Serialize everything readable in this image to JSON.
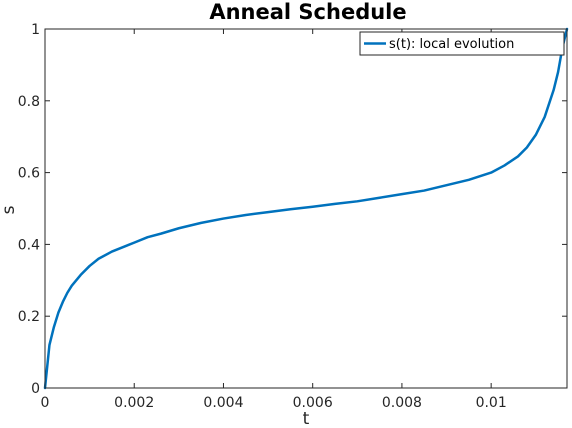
{
  "chart_data": {
    "type": "line",
    "title": "Anneal Schedule",
    "xlabel": "t",
    "ylabel": "s",
    "xlim": [
      0,
      0.0117
    ],
    "ylim": [
      0,
      1
    ],
    "xticks": [
      0,
      0.002,
      0.004,
      0.006,
      0.008,
      0.01
    ],
    "xtick_labels": [
      "0",
      "0.002",
      "0.004",
      "0.006",
      "0.008",
      "0.01"
    ],
    "yticks": [
      0,
      0.2,
      0.4,
      0.6,
      0.8,
      1
    ],
    "ytick_labels": [
      "0",
      "0.2",
      "0.4",
      "0.6",
      "0.8",
      "1"
    ],
    "grid": false,
    "legend_position": "top-right",
    "series": [
      {
        "name": "s(t): local evolution",
        "color": "#0072BD",
        "x": [
          0,
          0.0001,
          0.0002,
          0.0003,
          0.0004,
          0.0005,
          0.0006,
          0.0008,
          0.001,
          0.0012,
          0.0015,
          0.002,
          0.0023,
          0.0026,
          0.003,
          0.0035,
          0.004,
          0.0045,
          0.005,
          0.0055,
          0.006,
          0.0065,
          0.007,
          0.0075,
          0.008,
          0.0085,
          0.009,
          0.0095,
          0.01,
          0.0103,
          0.0106,
          0.0108,
          0.011,
          0.0112,
          0.0114,
          0.0115,
          0.0116,
          0.0117
        ],
        "y": [
          0,
          0.12,
          0.17,
          0.21,
          0.24,
          0.265,
          0.285,
          0.315,
          0.34,
          0.36,
          0.38,
          0.405,
          0.42,
          0.43,
          0.445,
          0.46,
          0.472,
          0.482,
          0.49,
          0.498,
          0.505,
          0.513,
          0.52,
          0.53,
          0.54,
          0.55,
          0.565,
          0.58,
          0.6,
          0.62,
          0.645,
          0.67,
          0.705,
          0.755,
          0.83,
          0.88,
          0.95,
          1
        ]
      }
    ]
  }
}
